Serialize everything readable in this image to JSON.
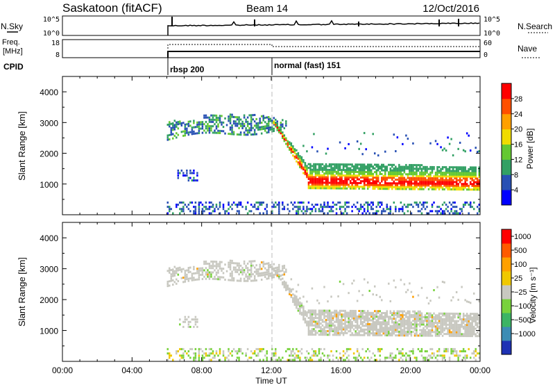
{
  "header": {
    "title": "Saskatoon (fitACF)",
    "beam": "Beam 14",
    "date": "12/Oct/2016"
  },
  "noise_panel": {
    "left_label": "N.Sky",
    "right_label": "N.Search",
    "left_ticks": [
      "10^5",
      "10^0"
    ],
    "right_ticks": [
      "10^5",
      "10^0"
    ]
  },
  "freq_panel": {
    "left_label_line1": "Freq.",
    "left_label_line2": "[MHz]",
    "right_label": "Nave",
    "left_ticks": [
      "18",
      "8"
    ],
    "right_ticks": [
      "60",
      "0"
    ]
  },
  "cpid": {
    "label": "CPID",
    "modes": [
      {
        "label": "rbsp 200",
        "start_hour": 6.0
      },
      {
        "label": "normal (fast) 151",
        "start_hour": 12.0
      }
    ]
  },
  "chart_data": [
    {
      "type": "heatmap",
      "name": "power",
      "ylabel": "Slant Range [km]",
      "ylim": [
        0,
        4500
      ],
      "yticks": [
        1000,
        2000,
        3000,
        4000
      ],
      "xlim": [
        0,
        24
      ],
      "colorbar": {
        "label": "Power [dB]",
        "ticks": [
          "4",
          "8",
          "12",
          "16",
          "20",
          "24",
          "28"
        ],
        "colors": [
          "#0000ff",
          "#2850b4",
          "#32a064",
          "#64c832",
          "#f0dc00",
          "#ffa000",
          "#ff5000",
          "#ff0000"
        ]
      },
      "features": [
        {
          "desc": "F region echo",
          "start_hour": 6.0,
          "end_hour": 12.8,
          "range_km": [
            2600,
            3400
          ]
        },
        {
          "desc": "descending echo",
          "start_hour": 12.0,
          "end_hour": 14.0,
          "range_km": [
            1400,
            3100
          ]
        },
        {
          "desc": "strong band",
          "start_hour": 14.0,
          "end_hour": 24.0,
          "range_km": [
            900,
            1700
          ],
          "peak_db": 28
        }
      ]
    },
    {
      "type": "heatmap",
      "name": "velocity",
      "ylabel": "Slant Range [km]",
      "ylim": [
        0,
        4500
      ],
      "yticks": [
        1000,
        2000,
        3000,
        4000
      ],
      "xlim": [
        0,
        24
      ],
      "colorbar": {
        "label": "Velocity [m s⁻¹]",
        "ticks": [
          "1000",
          "500",
          "100",
          "25",
          "−25",
          "−100",
          "−500",
          "−1000"
        ],
        "colors": [
          "#1e32b4",
          "#3c8cb4",
          "#3cb464",
          "#78d23c",
          "#c8c8c0",
          "#f0c800",
          "#ffa000",
          "#ff5a00",
          "#ff0000"
        ]
      }
    }
  ],
  "xaxis": {
    "label": "Time UT",
    "ticks": [
      "00:00",
      "04:00",
      "08:00",
      "12:00",
      "16:00",
      "20:00",
      "00:00"
    ]
  }
}
